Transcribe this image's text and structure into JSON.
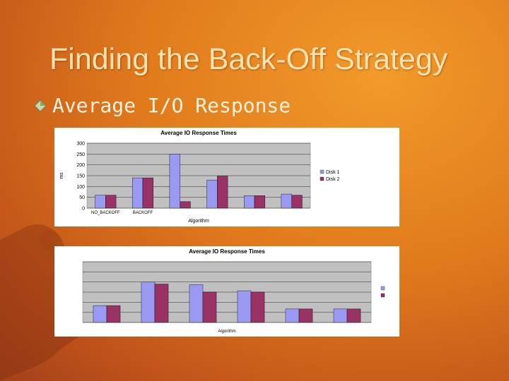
{
  "slide": {
    "title": "Finding the Back-Off Strategy",
    "bullet": "Average I/O Response"
  },
  "colors": {
    "disk1": "#9a9af2",
    "disk2": "#993366",
    "plot_bg": "#c0c0c0",
    "bullet_icon": "#b8c9a0"
  },
  "chart_data": [
    {
      "type": "bar",
      "title": "Average IO Response Times",
      "xlabel": "Algorithm",
      "ylabel": "ms",
      "ylim": [
        0,
        300
      ],
      "yticks": [
        "0",
        "50",
        "100",
        "150",
        "200",
        "250",
        "300"
      ],
      "categories": [
        "NO_BACKOFF",
        "BACKOFF",
        "",
        "",
        "",
        ""
      ],
      "series": [
        {
          "name": "Disk 1",
          "values": [
            60,
            140,
            250,
            130,
            58,
            65
          ]
        },
        {
          "name": "Disk 2",
          "values": [
            60,
            140,
            30,
            148,
            58,
            60
          ]
        }
      ],
      "legend": "right",
      "grid": true
    },
    {
      "type": "bar",
      "title": "Average IO Response Times",
      "xlabel": "Algorithm",
      "ylabel": "",
      "ylim": [
        0,
        90
      ],
      "categories": [
        "",
        "",
        "",
        "",
        "",
        ""
      ],
      "series": [
        {
          "name": "",
          "values": [
            25,
            60,
            56,
            47,
            20,
            20
          ]
        },
        {
          "name": "",
          "values": [
            25,
            57,
            45,
            45,
            20,
            20
          ]
        }
      ],
      "legend": "right",
      "grid": true
    }
  ]
}
